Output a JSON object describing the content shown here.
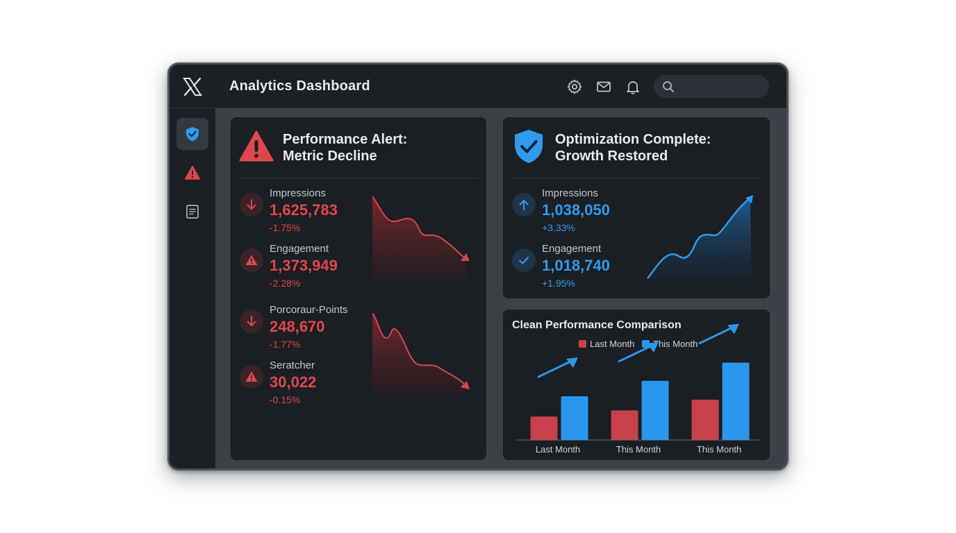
{
  "app": {
    "title": "Analytics Dashboard"
  },
  "header": {
    "icons": [
      "x-logo-icon",
      "gear-icon",
      "mail-icon",
      "bell-icon",
      "search-icon"
    ],
    "search": {
      "placeholder": ""
    }
  },
  "sidebar": {
    "items": [
      {
        "icon": "shield-check-icon",
        "active": true
      },
      {
        "icon": "warning-icon",
        "active": false
      },
      {
        "icon": "document-icon",
        "active": false
      }
    ]
  },
  "alert_card": {
    "title_line1": "Performance Alert:",
    "title_line2": "Metric Decline",
    "metrics": [
      {
        "label": "Impressions",
        "value": "1,625,783",
        "change": "-1.75%",
        "icon": "arrow-down-icon"
      },
      {
        "label": "Engagement",
        "value": "1,373,949",
        "change": "-2.28%",
        "icon": "warning-icon"
      },
      {
        "label": "Porcoraur-Points",
        "value": "248,670",
        "change": "-1.77%",
        "icon": "arrow-down-icon"
      },
      {
        "label": "Seratcher",
        "value": "30,022",
        "change": "-0.15%",
        "icon": "warning-icon"
      }
    ]
  },
  "optimization_card": {
    "title_line1": "Optimization Complete:",
    "title_line2": "Growth Restored",
    "metrics": [
      {
        "label": "Impressions",
        "value": "1,038,050",
        "change": "+3.33%",
        "icon": "arrow-up-icon"
      },
      {
        "label": "Engagement",
        "value": "1,018,740",
        "change": "+1.95%",
        "icon": "check-icon"
      }
    ]
  },
  "comparison_card": {
    "title": "Clean Performance Comparison",
    "chart_data": {
      "type": "bar",
      "title": "Clean Performance Comparison",
      "categories": [
        "Last Month",
        "This Month",
        "This Month"
      ],
      "series": [
        {
          "name": "Last Month",
          "values": [
            35,
            44,
            60
          ]
        },
        {
          "name": "This Month",
          "values": [
            65,
            88,
            115
          ]
        }
      ],
      "ylim": [
        0,
        130
      ],
      "legend": "top-center",
      "grid": false
    }
  },
  "colors": {
    "red": "#e0474c",
    "blue": "#2f9bf0",
    "bar_red": "#c8414a",
    "bar_blue": "#2b97ec"
  }
}
